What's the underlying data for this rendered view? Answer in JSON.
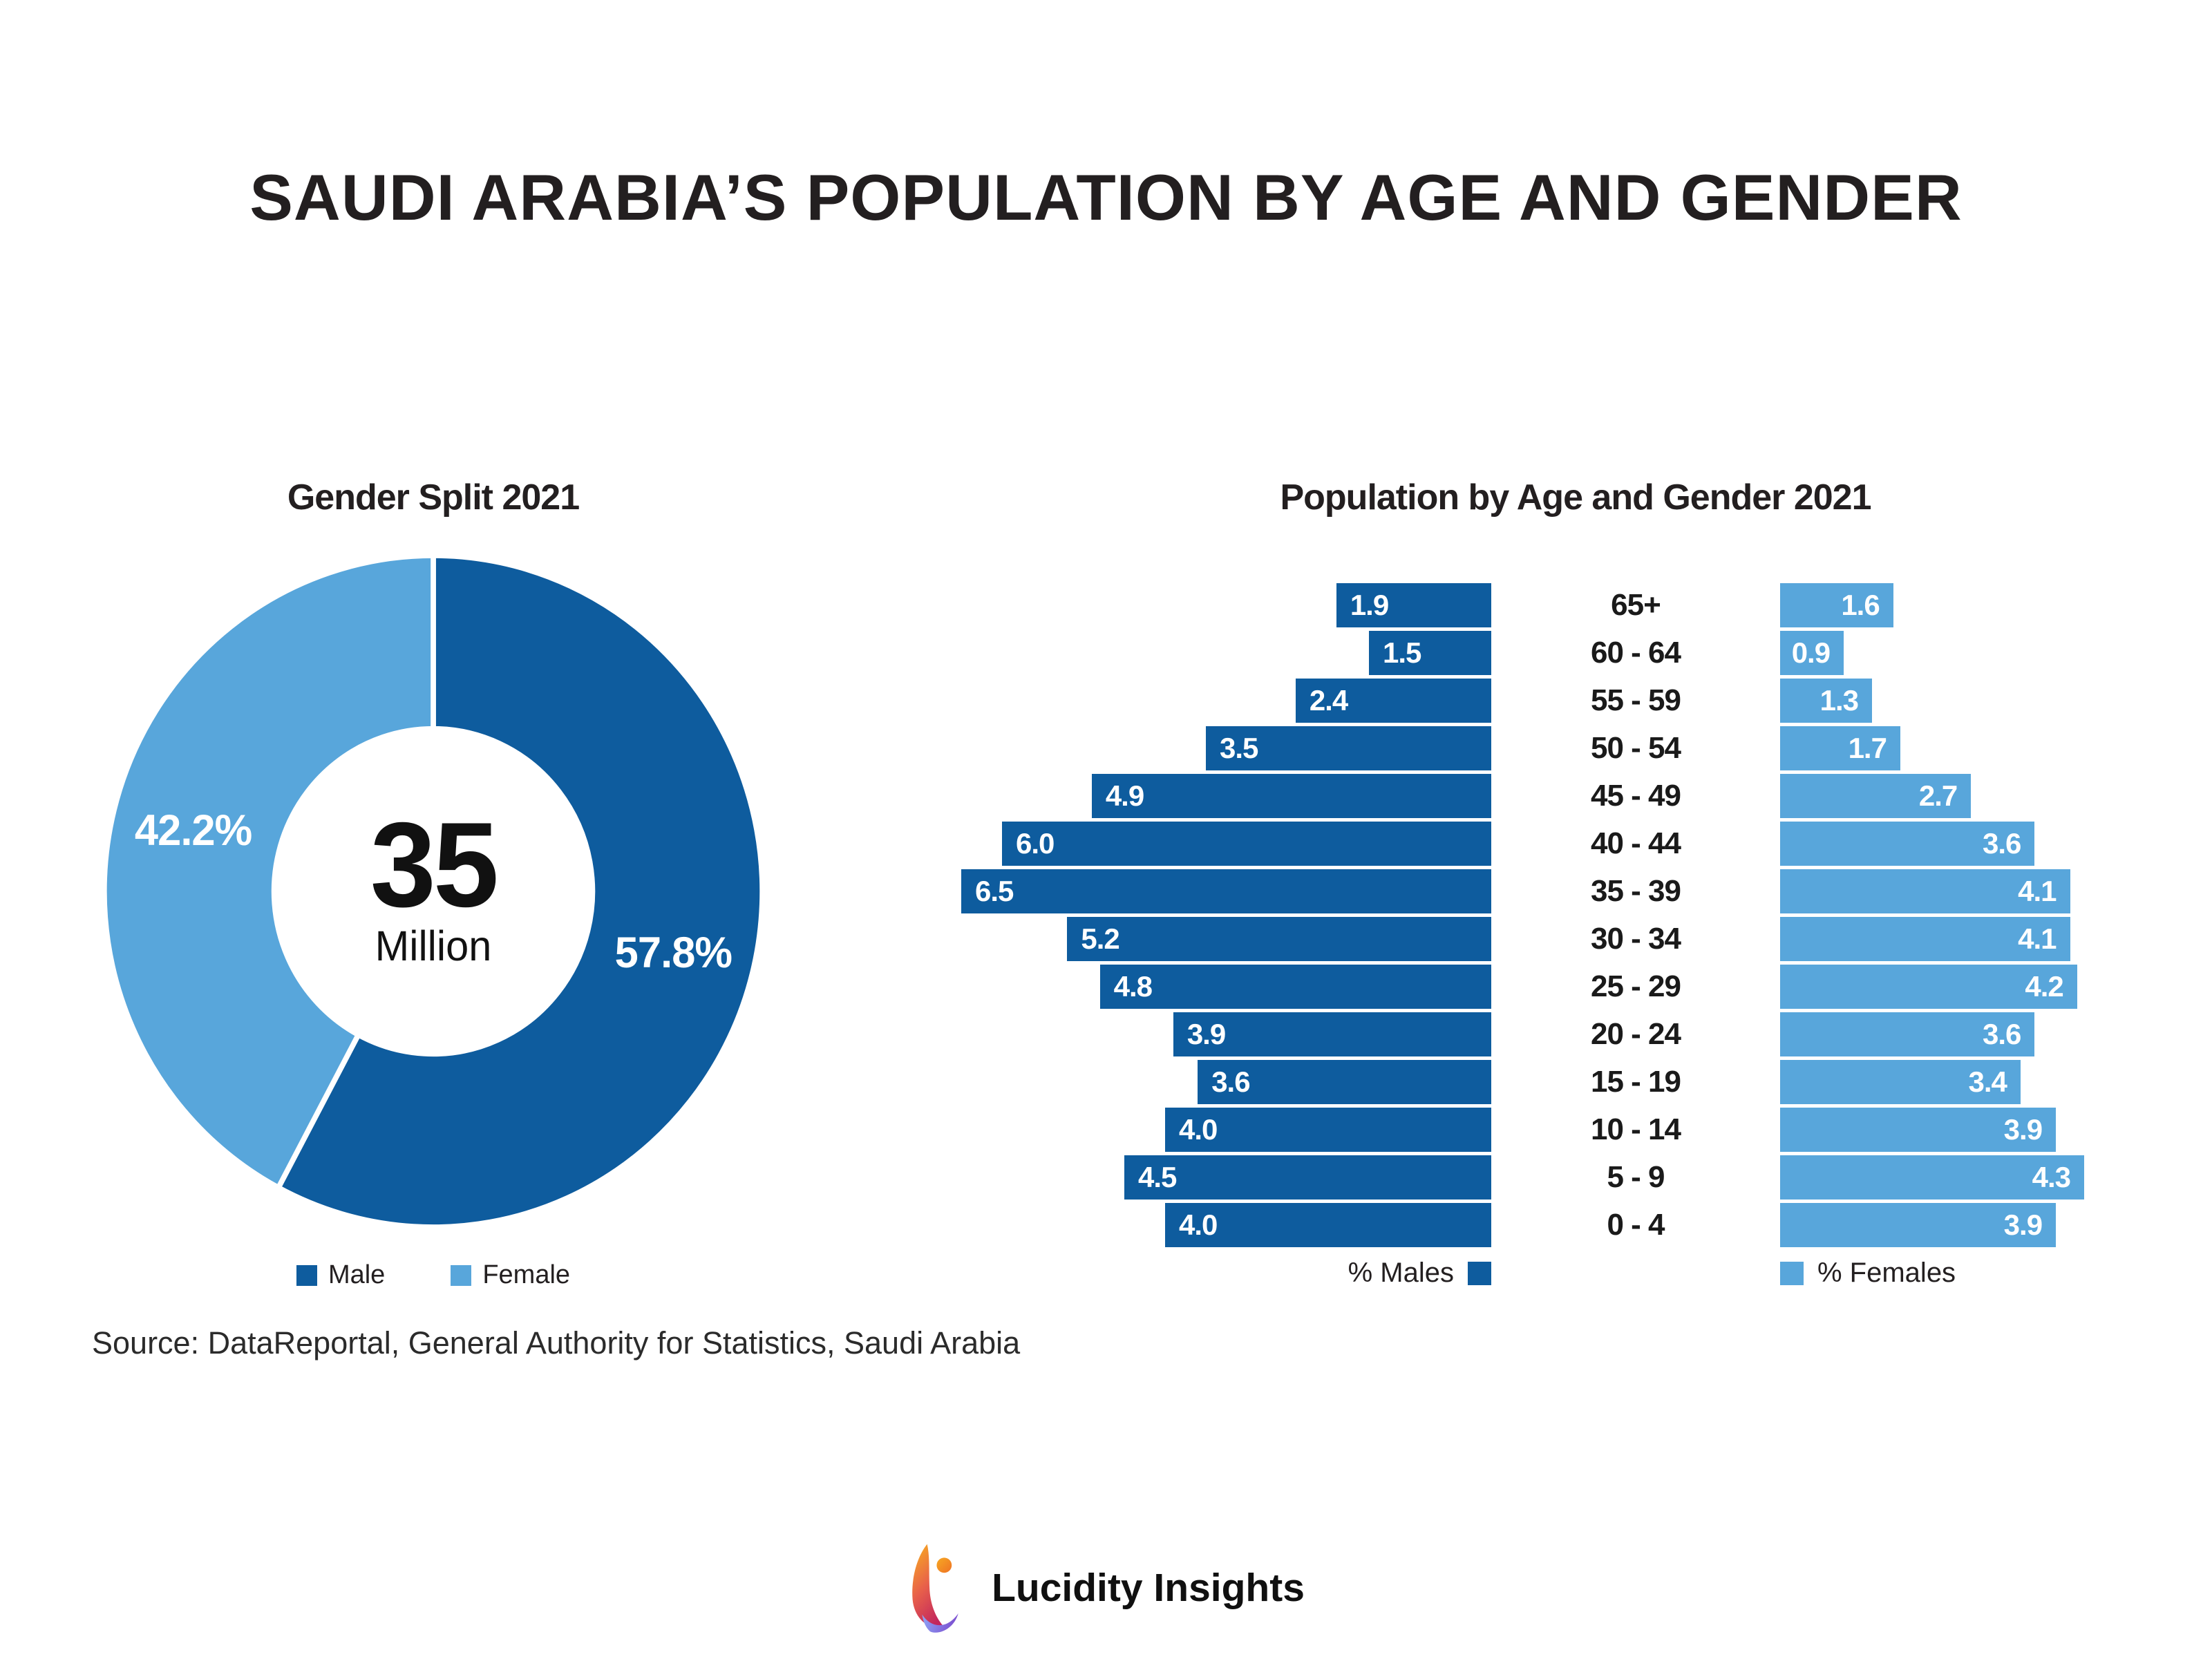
{
  "page": {
    "title": "SAUDI ARABIA’S POPULATION BY AGE AND GENDER",
    "source": "Source: DataReportal, General Authority for Statistics, Saudi Arabia",
    "brand": "Lucidity Insights"
  },
  "colors": {
    "male": "#0E5C9E",
    "female": "#58A6DB",
    "text_dark": "#231F20"
  },
  "donut_chart": {
    "title": "Gender Split 2021",
    "center_value": "35",
    "center_unit": "Million",
    "legend": [
      "Male",
      "Female"
    ]
  },
  "pyramid_chart": {
    "title": "Population by Age and Gender 2021",
    "legend_male": "% Males",
    "legend_female": "% Females"
  },
  "chart_data": [
    {
      "type": "pie",
      "title": "Gender Split 2021",
      "labels": [
        "Male",
        "Female"
      ],
      "values": [
        57.8,
        42.2
      ],
      "unit": "%",
      "colors": [
        "#0E5C9E",
        "#58A6DB"
      ],
      "center_text": "35 Million",
      "start_angle_deg": -90,
      "direction": "clockwise",
      "inner_radius_ratio": 0.48,
      "legend_position": "bottom"
    },
    {
      "type": "bar",
      "subtype": "population-pyramid",
      "title": "Population by Age and Gender 2021",
      "categories": [
        "65+",
        "60 - 64",
        "55 - 59",
        "50 - 54",
        "45 - 49",
        "40 - 44",
        "35 - 39",
        "30 - 34",
        "25 - 29",
        "20 - 24",
        "15 - 19",
        "10 - 14",
        "5 - 9",
        "0 - 4"
      ],
      "series": [
        {
          "name": "% Males",
          "color": "#0E5C9E",
          "values": [
            1.9,
            1.5,
            2.4,
            3.5,
            4.9,
            6.0,
            6.5,
            5.2,
            4.8,
            3.9,
            3.6,
            4.0,
            4.5,
            4.0
          ]
        },
        {
          "name": "% Females",
          "color": "#58A6DB",
          "values": [
            1.6,
            0.9,
            1.3,
            1.7,
            2.7,
            3.6,
            4.1,
            4.1,
            4.2,
            3.6,
            3.4,
            3.9,
            4.3,
            3.9
          ]
        }
      ],
      "value_label_decimals": 1,
      "xlim_male": [
        0,
        6.5
      ],
      "xlim_female": [
        0,
        4.3
      ],
      "grid": false
    }
  ]
}
